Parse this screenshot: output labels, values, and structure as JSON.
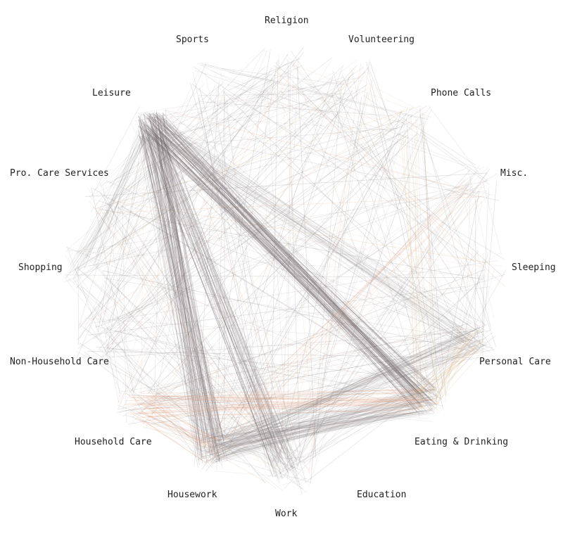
{
  "categories": [
    {
      "id": "religion",
      "label": "Religion"
    },
    {
      "id": "volunteering",
      "label": "Volunteering"
    },
    {
      "id": "phone-calls",
      "label": "Phone Calls"
    },
    {
      "id": "misc",
      "label": "Misc."
    },
    {
      "id": "sleeping",
      "label": "Sleeping"
    },
    {
      "id": "personal-care",
      "label": "Personal Care"
    },
    {
      "id": "eating-drinking",
      "label": "Eating & Drinking"
    },
    {
      "id": "education",
      "label": "Education"
    },
    {
      "id": "work",
      "label": "Work"
    },
    {
      "id": "housework",
      "label": "Housework"
    },
    {
      "id": "household-care",
      "label": "Household Care"
    },
    {
      "id": "non-household-care",
      "label": "Non-Household Care"
    },
    {
      "id": "shopping",
      "label": "Shopping"
    },
    {
      "id": "pro-care-services",
      "label": "Pro. Care Services"
    },
    {
      "id": "leisure",
      "label": "Leisure"
    },
    {
      "id": "sports",
      "label": "Sports"
    }
  ],
  "colors": {
    "background": "#ffffff",
    "label_text": "#222222",
    "line_gray": "#8a8486",
    "line_dark": "#6e6467",
    "line_peach": "#e09a78",
    "line_tan": "#d8b27a"
  }
}
